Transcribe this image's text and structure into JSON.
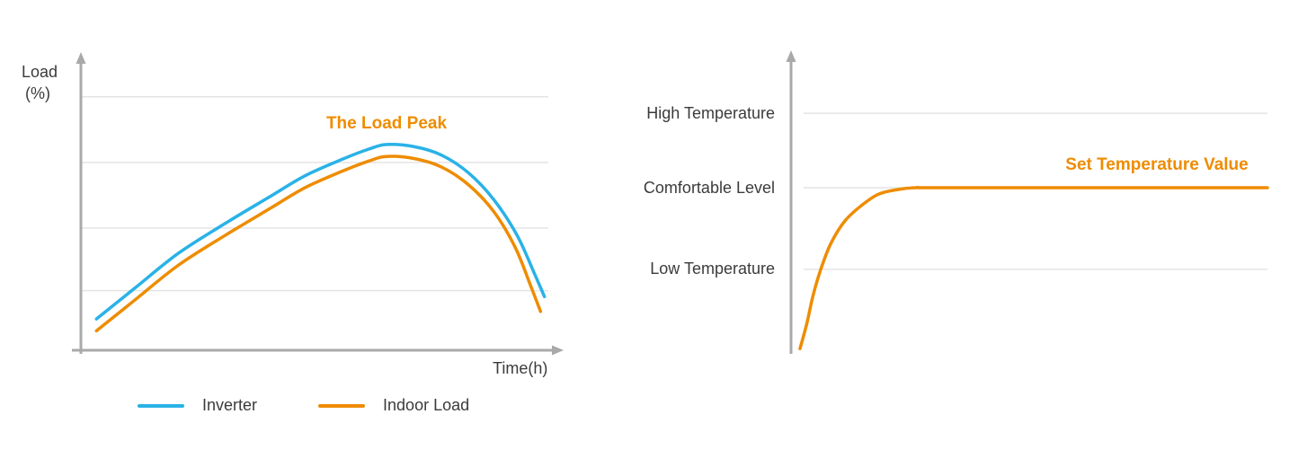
{
  "palette": {
    "accent_orange": "#ee8c00",
    "accent_blue": "#29b2e7",
    "axis_gray": "#a9a9a9",
    "grid_gray": "#e4e4e4",
    "text": "#3b3b3b"
  },
  "chart_data": [
    {
      "type": "line",
      "title": "",
      "xlabel": "Time(h)",
      "ylabel": "Load (%)",
      "ylabel_lines": [
        "Load",
        "(%)"
      ],
      "xlim": [
        0,
        24
      ],
      "ylim": [
        0,
        100
      ],
      "grid": true,
      "gridlines_y": [
        20,
        41,
        63,
        85
      ],
      "legend_position": "bottom",
      "annotation": {
        "text": "The Load Peak",
        "x": 15.5,
        "y": 74
      },
      "series": [
        {
          "name": "Inverter",
          "color": "#29b2e7",
          "x": [
            0.8,
            2.8,
            5.0,
            7.4,
            9.7,
            11.5,
            13.4,
            14.8,
            15.7,
            17.1,
            18.5,
            19.9,
            21.2,
            22.4,
            23.3,
            23.8
          ],
          "y": [
            10.5,
            21,
            32.5,
            42.5,
            51.5,
            58.5,
            64,
            67.5,
            69,
            68.3,
            65.5,
            59.5,
            50.5,
            38.5,
            25.5,
            18
          ]
        },
        {
          "name": "Indoor Load",
          "color": "#ee8c00",
          "x": [
            0.8,
            2.8,
            5.0,
            7.4,
            9.7,
            11.5,
            13.4,
            14.8,
            15.7,
            17.1,
            18.5,
            19.9,
            21.2,
            22.3,
            23.1,
            23.6
          ],
          "y": [
            6.5,
            17,
            28.5,
            38.5,
            47.5,
            54.5,
            60,
            63.5,
            65,
            64.3,
            61.5,
            55.5,
            46.5,
            34.5,
            21.5,
            13
          ]
        }
      ]
    },
    {
      "type": "line",
      "title": "",
      "xlabel": "",
      "ylabel": "",
      "xlim": [
        0,
        24
      ],
      "ylim": [
        0,
        100
      ],
      "grid": true,
      "gridlines_y": [
        79,
        54.2,
        27
      ],
      "ytick_labels": [
        {
          "label": "High Temperature",
          "value": 79
        },
        {
          "label": "Comfortable Level",
          "value": 54.2
        },
        {
          "label": "Low Temperature",
          "value": 27
        }
      ],
      "annotation": {
        "text": "Set Temperature Value",
        "x": 18.5,
        "y": 60
      },
      "series": [
        {
          "name": "Set Temperature",
          "color": "#ee8c00",
          "x": [
            0.45,
            0.8,
            1.1,
            1.5,
            2.0,
            2.7,
            3.5,
            4.4,
            5.4,
            6.3,
            8.2,
            24
          ],
          "y": [
            0.5,
            9,
            18,
            27,
            35.5,
            43,
            48,
            52,
            53.6,
            54.2,
            54.2,
            54.2
          ]
        }
      ]
    }
  ]
}
